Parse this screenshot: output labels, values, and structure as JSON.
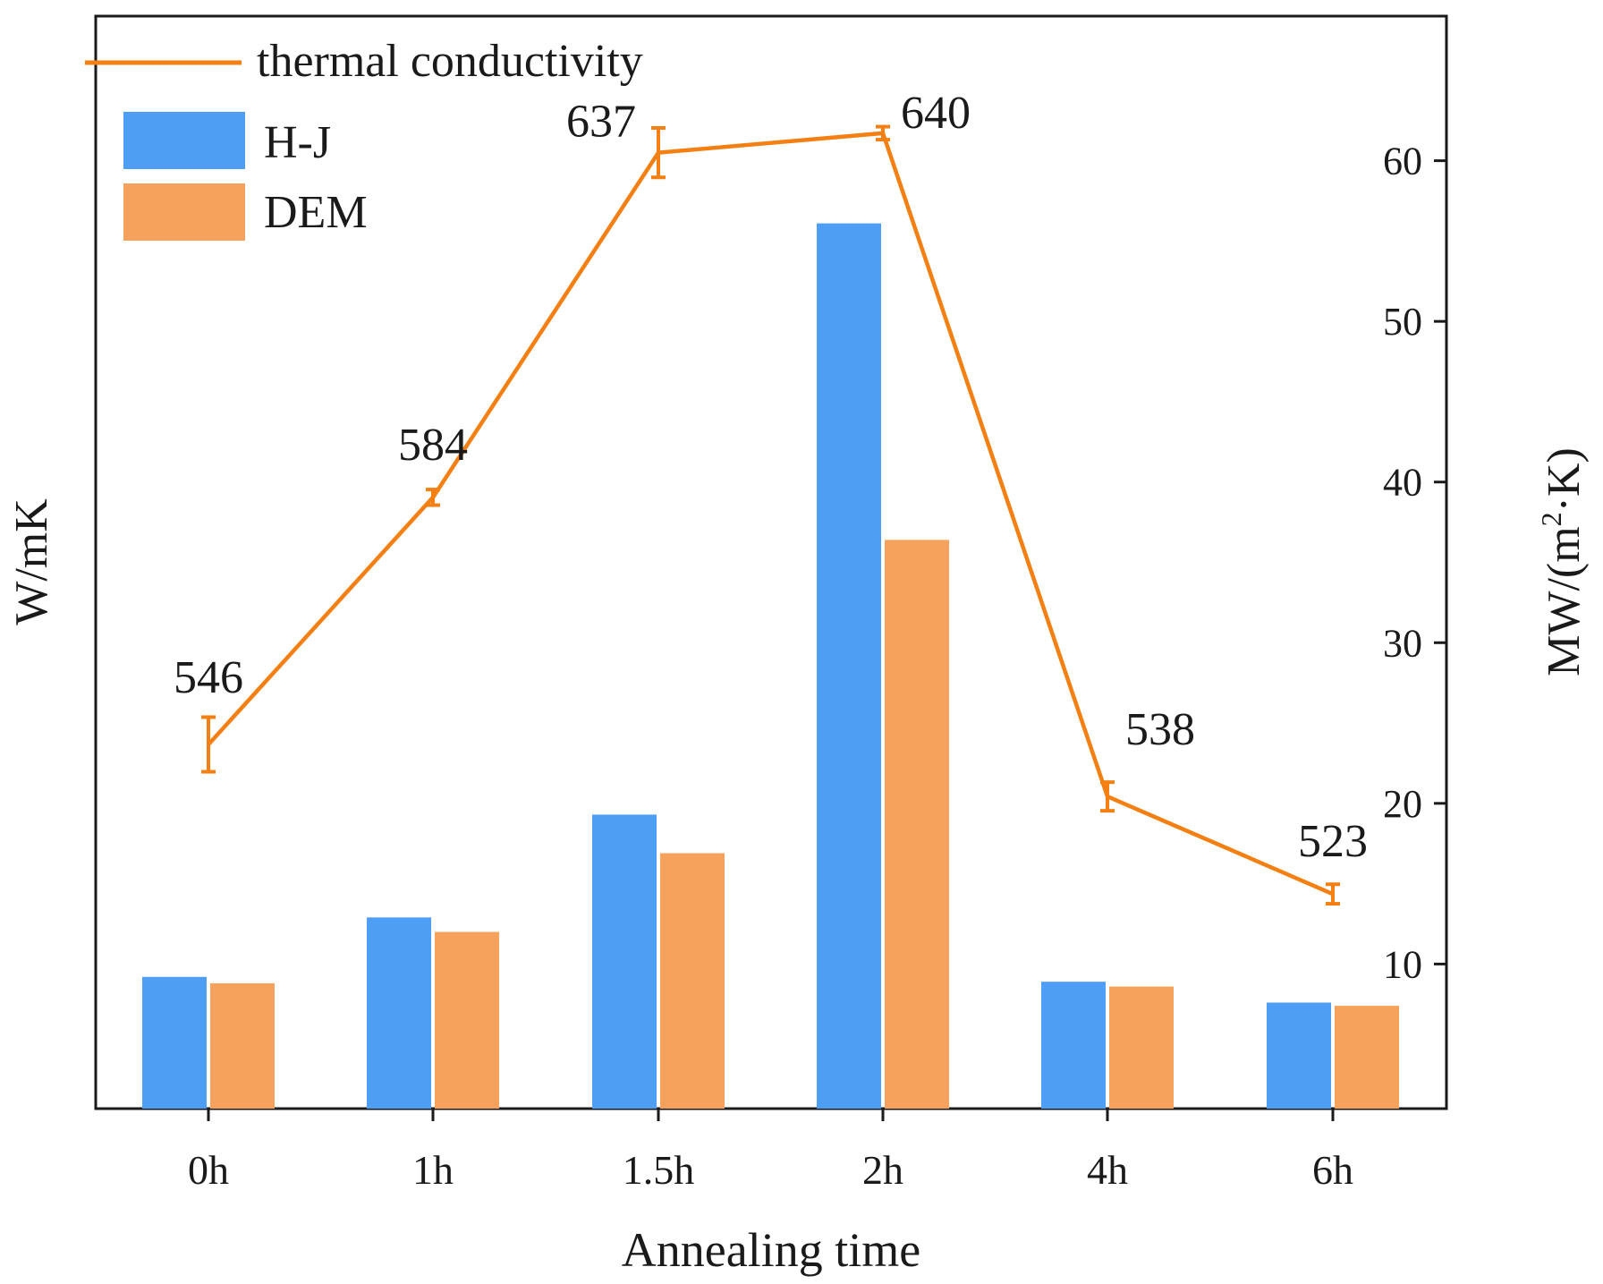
{
  "chart_data": {
    "type": "bar",
    "categories": [
      "0h",
      "1h",
      "1.5h",
      "2h",
      "4h",
      "6h"
    ],
    "xlabel": "Annealing time",
    "ylabel_left": "W/mK",
    "ylabel_right_main": "MW/(m",
    "ylabel_right_sup": "2",
    "ylabel_right_tail": "·K)",
    "right_axis": {
      "min": 1,
      "max": 69,
      "ticks": [
        10,
        20,
        30,
        40,
        50,
        60
      ]
    },
    "bar_series": [
      {
        "name": "H-J",
        "color": "#4f9ef6",
        "values": [
          9.2,
          12.9,
          19.3,
          56.1,
          8.9,
          7.6
        ]
      },
      {
        "name": "DEM",
        "color": "#f7a25c",
        "values": [
          8.8,
          12.0,
          16.9,
          36.4,
          8.6,
          7.4
        ]
      }
    ],
    "line_series": {
      "name": "thermal conductivity",
      "color": "#f47f12",
      "values": [
        546,
        584,
        637,
        640,
        538,
        523
      ],
      "labels": [
        "546",
        "584",
        "637",
        "640",
        "538",
        "523"
      ],
      "error": [
        4.2,
        1.2,
        3.8,
        1.0,
        2.2,
        1.5
      ],
      "left_axis_range": [
        490,
        658
      ]
    },
    "legend": {
      "position": "top-left",
      "order": [
        "thermal conductivity",
        "H-J",
        "DEM"
      ]
    }
  }
}
